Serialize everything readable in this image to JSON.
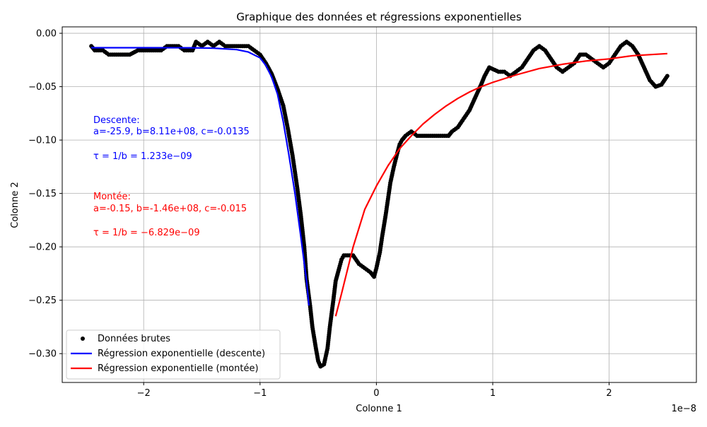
{
  "chart_data": {
    "type": "line",
    "title": "Graphique des données et régressions exponentielles",
    "xlabel": "Colonne 1",
    "ylabel": "Colonne 2",
    "x_offset_label": "1e−8",
    "xlim": [
      -2.7,
      2.75
    ],
    "ylim": [
      -0.327,
      0.006
    ],
    "x_ticks": [
      -2,
      -1,
      0,
      1,
      2
    ],
    "x_tick_labels": [
      "−2",
      "−1",
      "0",
      "1",
      "2"
    ],
    "y_ticks": [
      0.0,
      -0.05,
      -0.1,
      -0.15,
      -0.2,
      -0.25,
      -0.3
    ],
    "y_tick_labels": [
      "0.00",
      "−0.05",
      "−0.10",
      "−0.15",
      "−0.20",
      "−0.25",
      "−0.30"
    ],
    "grid": true,
    "legend_position": "lower-left",
    "colors": {
      "data": "#000000",
      "descent": "#0000ff",
      "rise": "#ff0000",
      "grid": "#b0b0b0"
    },
    "annotations": {
      "descent": {
        "heading": "Descente:",
        "params": "a=-25.9, b=8.11e+08, c=-0.0135",
        "tau": "τ = 1/b = 1.233e−09"
      },
      "rise": {
        "heading": "Montée:",
        "params": "a=-0.15, b=-1.46e+08, c=-0.015",
        "tau": "τ = 1/b = −6.829e−09"
      }
    },
    "series": [
      {
        "name": "Données brutes",
        "style": "dots",
        "color": "#000000",
        "points": [
          [
            -2.45,
            -0.012
          ],
          [
            -2.42,
            -0.016
          ],
          [
            -2.35,
            -0.016
          ],
          [
            -2.3,
            -0.02
          ],
          [
            -2.2,
            -0.02
          ],
          [
            -2.12,
            -0.02
          ],
          [
            -2.05,
            -0.016
          ],
          [
            -1.95,
            -0.016
          ],
          [
            -1.85,
            -0.016
          ],
          [
            -1.8,
            -0.012
          ],
          [
            -1.7,
            -0.012
          ],
          [
            -1.65,
            -0.016
          ],
          [
            -1.58,
            -0.016
          ],
          [
            -1.55,
            -0.008
          ],
          [
            -1.5,
            -0.012
          ],
          [
            -1.45,
            -0.008
          ],
          [
            -1.4,
            -0.012
          ],
          [
            -1.35,
            -0.008
          ],
          [
            -1.3,
            -0.012
          ],
          [
            -1.2,
            -0.012
          ],
          [
            -1.1,
            -0.012
          ],
          [
            -1.05,
            -0.016
          ],
          [
            -1.0,
            -0.02
          ],
          [
            -0.95,
            -0.028
          ],
          [
            -0.9,
            -0.038
          ],
          [
            -0.85,
            -0.052
          ],
          [
            -0.8,
            -0.068
          ],
          [
            -0.76,
            -0.09
          ],
          [
            -0.72,
            -0.115
          ],
          [
            -0.68,
            -0.145
          ],
          [
            -0.65,
            -0.17
          ],
          [
            -0.62,
            -0.2
          ],
          [
            -0.6,
            -0.23
          ],
          [
            -0.57,
            -0.255
          ],
          [
            -0.55,
            -0.275
          ],
          [
            -0.52,
            -0.295
          ],
          [
            -0.5,
            -0.307
          ],
          [
            -0.48,
            -0.312
          ],
          [
            -0.45,
            -0.31
          ],
          [
            -0.42,
            -0.295
          ],
          [
            -0.4,
            -0.275
          ],
          [
            -0.37,
            -0.25
          ],
          [
            -0.35,
            -0.232
          ],
          [
            -0.32,
            -0.22
          ],
          [
            -0.3,
            -0.212
          ],
          [
            -0.28,
            -0.208
          ],
          [
            -0.2,
            -0.208
          ],
          [
            -0.15,
            -0.216
          ],
          [
            -0.1,
            -0.22
          ],
          [
            -0.05,
            -0.224
          ],
          [
            -0.02,
            -0.228
          ],
          [
            0.0,
            -0.22
          ],
          [
            0.03,
            -0.205
          ],
          [
            0.05,
            -0.19
          ],
          [
            0.08,
            -0.17
          ],
          [
            0.1,
            -0.155
          ],
          [
            0.12,
            -0.14
          ],
          [
            0.15,
            -0.125
          ],
          [
            0.18,
            -0.112
          ],
          [
            0.2,
            -0.104
          ],
          [
            0.22,
            -0.1
          ],
          [
            0.25,
            -0.096
          ],
          [
            0.3,
            -0.092
          ],
          [
            0.35,
            -0.096
          ],
          [
            0.45,
            -0.096
          ],
          [
            0.55,
            -0.096
          ],
          [
            0.62,
            -0.096
          ],
          [
            0.65,
            -0.092
          ],
          [
            0.7,
            -0.088
          ],
          [
            0.75,
            -0.08
          ],
          [
            0.8,
            -0.072
          ],
          [
            0.85,
            -0.06
          ],
          [
            0.9,
            -0.048
          ],
          [
            0.93,
            -0.04
          ],
          [
            0.97,
            -0.032
          ],
          [
            1.05,
            -0.036
          ],
          [
            1.1,
            -0.036
          ],
          [
            1.15,
            -0.04
          ],
          [
            1.2,
            -0.036
          ],
          [
            1.25,
            -0.032
          ],
          [
            1.3,
            -0.024
          ],
          [
            1.35,
            -0.016
          ],
          [
            1.4,
            -0.012
          ],
          [
            1.45,
            -0.016
          ],
          [
            1.5,
            -0.024
          ],
          [
            1.55,
            -0.032
          ],
          [
            1.6,
            -0.036
          ],
          [
            1.65,
            -0.032
          ],
          [
            1.7,
            -0.028
          ],
          [
            1.75,
            -0.02
          ],
          [
            1.8,
            -0.02
          ],
          [
            1.85,
            -0.024
          ],
          [
            1.9,
            -0.028
          ],
          [
            1.95,
            -0.032
          ],
          [
            2.0,
            -0.028
          ],
          [
            2.05,
            -0.02
          ],
          [
            2.1,
            -0.012
          ],
          [
            2.15,
            -0.008
          ],
          [
            2.2,
            -0.012
          ],
          [
            2.25,
            -0.02
          ],
          [
            2.3,
            -0.032
          ],
          [
            2.35,
            -0.044
          ],
          [
            2.4,
            -0.05
          ],
          [
            2.45,
            -0.048
          ],
          [
            2.5,
            -0.04
          ]
        ]
      },
      {
        "name": "Régression exponentielle (descente)",
        "style": "line",
        "color": "#0000ff",
        "points": [
          [
            -2.45,
            -0.0135
          ],
          [
            -2.0,
            -0.0135
          ],
          [
            -1.6,
            -0.0136
          ],
          [
            -1.4,
            -0.0139
          ],
          [
            -1.2,
            -0.0153
          ],
          [
            -1.1,
            -0.0176
          ],
          [
            -1.0,
            -0.023
          ],
          [
            -0.95,
            -0.03
          ],
          [
            -0.9,
            -0.041
          ],
          [
            -0.85,
            -0.057
          ],
          [
            -0.8,
            -0.083
          ],
          [
            -0.75,
            -0.115
          ],
          [
            -0.7,
            -0.15
          ],
          [
            -0.65,
            -0.19
          ],
          [
            -0.6,
            -0.232
          ],
          [
            -0.58,
            -0.255
          ]
        ]
      },
      {
        "name": "Régression exponentielle (montée)",
        "style": "line",
        "color": "#ff0000",
        "points": [
          [
            -0.35,
            -0.265
          ],
          [
            -0.3,
            -0.244
          ],
          [
            -0.2,
            -0.2
          ],
          [
            -0.1,
            -0.165
          ],
          [
            0.0,
            -0.143
          ],
          [
            0.1,
            -0.124
          ],
          [
            0.2,
            -0.108
          ],
          [
            0.3,
            -0.096
          ],
          [
            0.4,
            -0.085
          ],
          [
            0.5,
            -0.076
          ],
          [
            0.6,
            -0.068
          ],
          [
            0.7,
            -0.061
          ],
          [
            0.8,
            -0.055
          ],
          [
            0.9,
            -0.05
          ],
          [
            1.0,
            -0.046
          ],
          [
            1.2,
            -0.039
          ],
          [
            1.4,
            -0.033
          ],
          [
            1.6,
            -0.029
          ],
          [
            1.8,
            -0.026
          ],
          [
            2.0,
            -0.024
          ],
          [
            2.2,
            -0.021
          ],
          [
            2.5,
            -0.019
          ]
        ]
      }
    ]
  }
}
